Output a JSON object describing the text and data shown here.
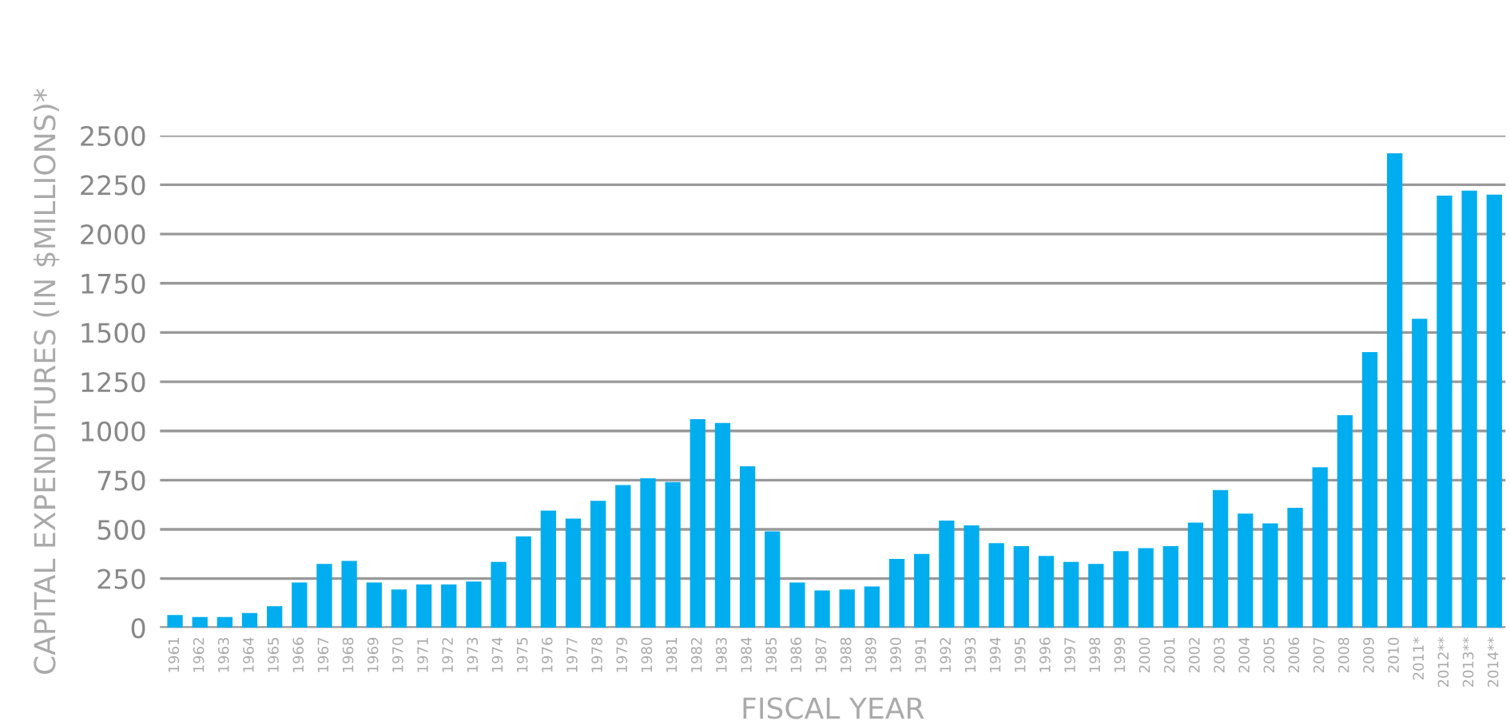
{
  "chart_data": {
    "type": "bar",
    "xlabel": "FISCAL YEAR",
    "ylabel": "CAPITAL EXPENDITURES (IN $MILLIONS)*",
    "categories": [
      "1961",
      "1962",
      "1963",
      "1964",
      "1965",
      "1966",
      "1967",
      "1968",
      "1969",
      "1970",
      "1971",
      "1972",
      "1973",
      "1974",
      "1975",
      "1976",
      "1977",
      "1978",
      "1979",
      "1980",
      "1981",
      "1982",
      "1983",
      "1984",
      "1985",
      "1986",
      "1987",
      "1988",
      "1989",
      "1990",
      "1991",
      "1992",
      "1993",
      "1994",
      "1995",
      "1996",
      "1997",
      "1998",
      "1999",
      "2000",
      "2001",
      "2002",
      "2003",
      "2004",
      "2005",
      "2006",
      "2007",
      "2008",
      "2009",
      "2010",
      "2011*",
      "2012**",
      "2013**",
      "2014**"
    ],
    "values": [
      65,
      55,
      55,
      75,
      110,
      230,
      325,
      340,
      230,
      195,
      220,
      220,
      235,
      335,
      465,
      595,
      555,
      645,
      725,
      760,
      740,
      1060,
      1040,
      820,
      490,
      230,
      190,
      195,
      210,
      350,
      375,
      545,
      520,
      430,
      415,
      365,
      335,
      325,
      390,
      405,
      415,
      535,
      700,
      580,
      530,
      610,
      815,
      1080,
      1400,
      2410,
      1570,
      2195,
      2220,
      2200
    ],
    "color": "#00aeef",
    "ylim": [
      0,
      2500
    ],
    "yticks": [
      0,
      250,
      500,
      750,
      1000,
      1250,
      1500,
      1750,
      2000,
      2250,
      2500
    ],
    "grid": "y"
  }
}
